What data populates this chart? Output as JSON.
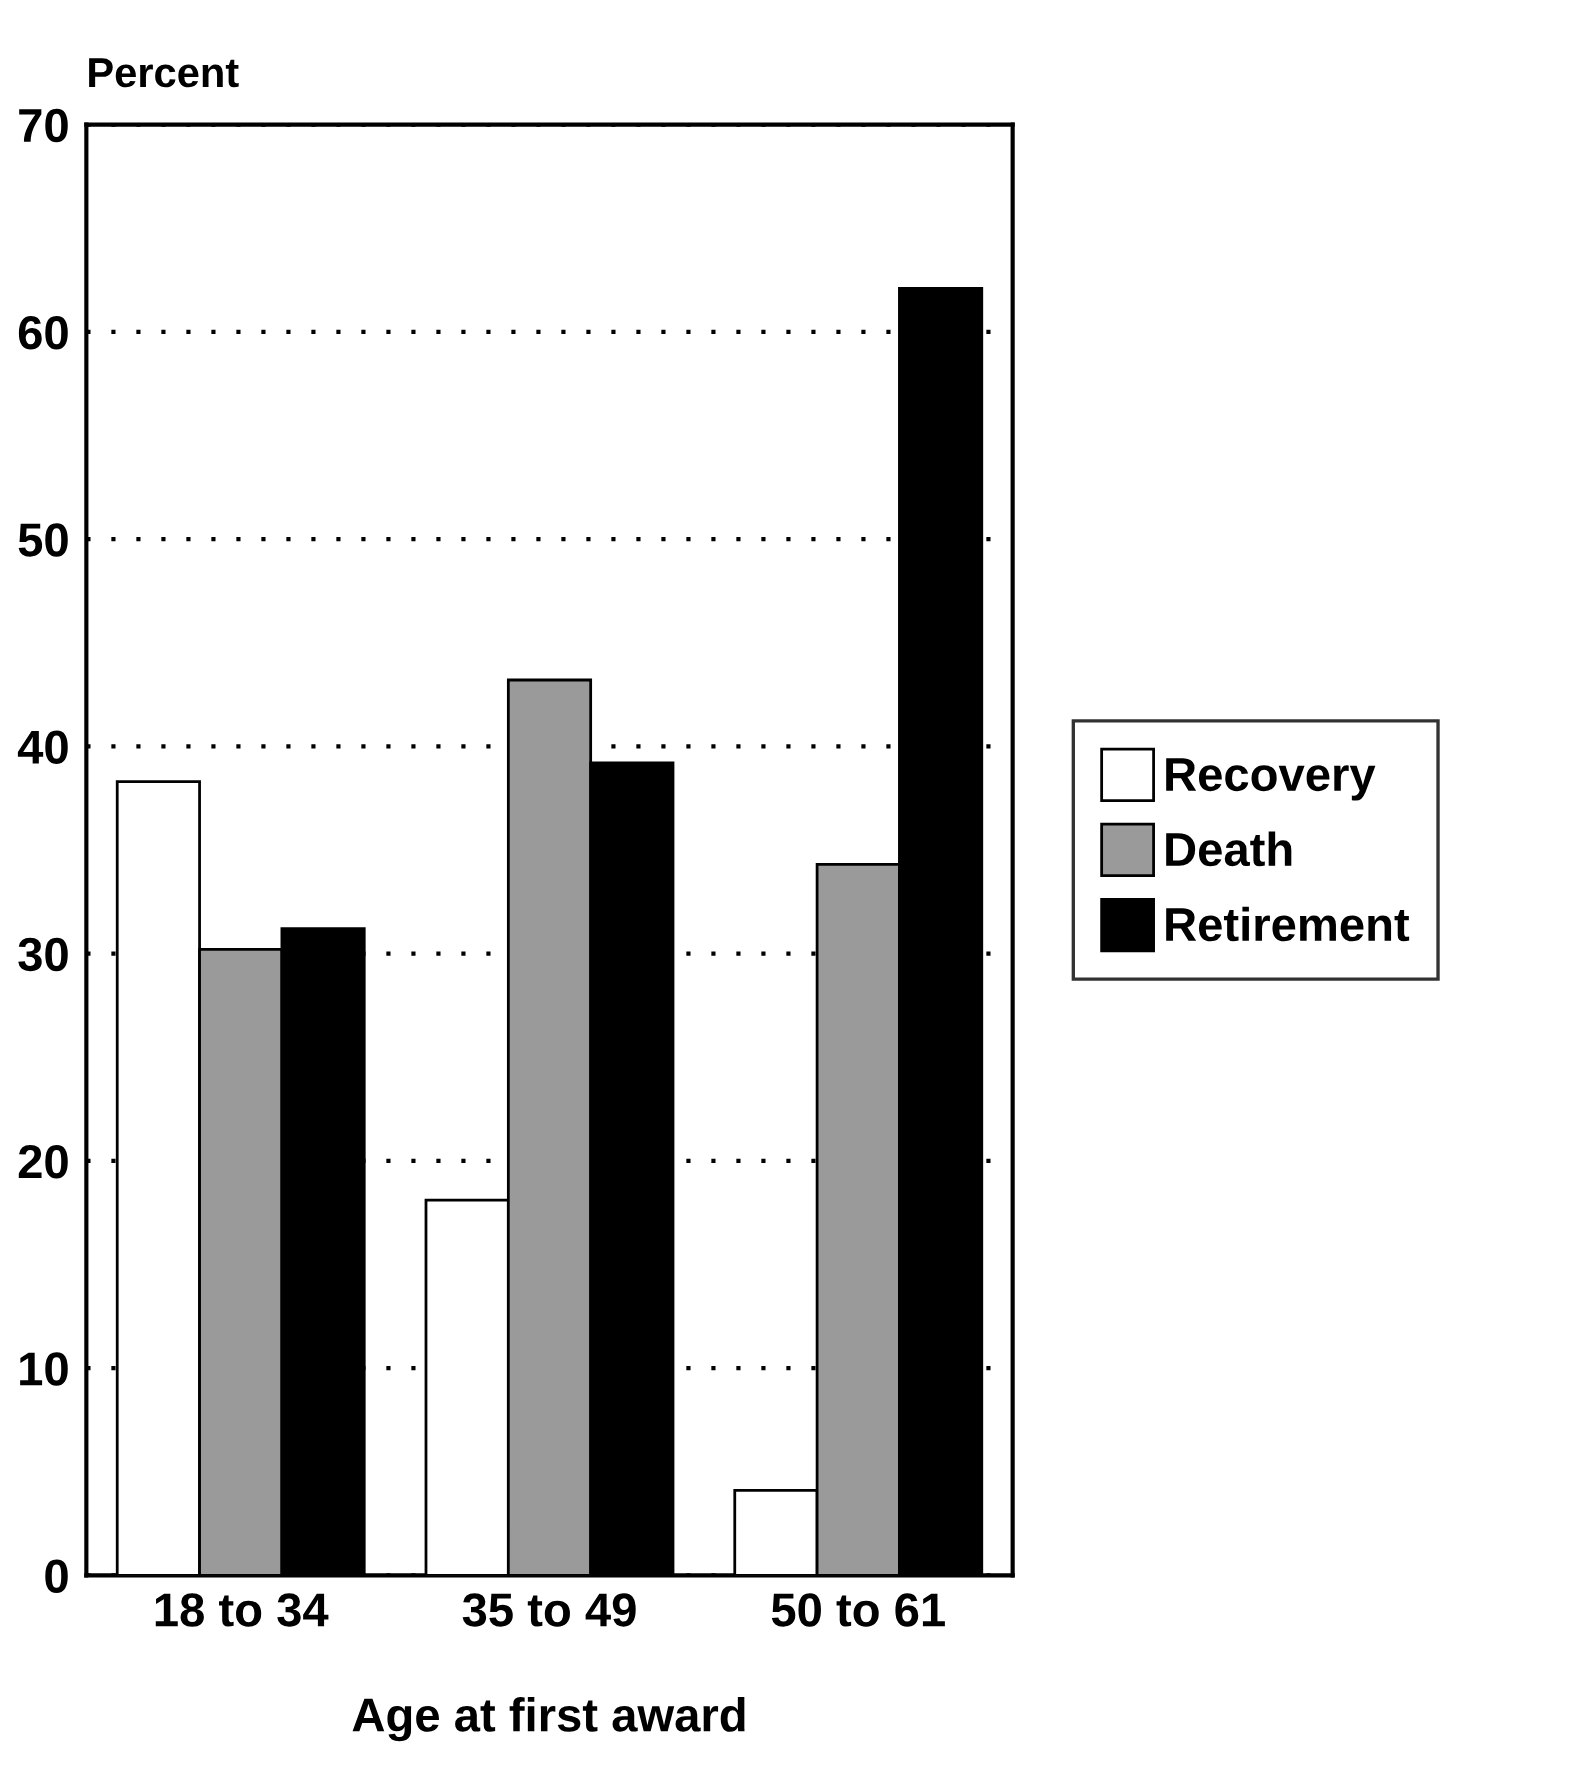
{
  "chart_data": {
    "type": "bar",
    "ylabel": "Percent",
    "xlabel": "Age at first award",
    "categories": [
      "18 to 34",
      "35 to 49",
      "50 to 61"
    ],
    "series": [
      {
        "name": "Recovery",
        "color": "#ffffff",
        "values": [
          38.3,
          18.1,
          4.1
        ]
      },
      {
        "name": "Death",
        "color": "#9a9a9a",
        "values": [
          30.2,
          43.2,
          34.3
        ]
      },
      {
        "name": "Retirement",
        "color": "#000000",
        "values": [
          31.2,
          39.2,
          62.1
        ]
      }
    ],
    "ylim": [
      0,
      70
    ],
    "yticks": [
      0,
      10,
      20,
      30,
      40,
      50,
      60,
      70
    ],
    "grid": "y",
    "legend": "right"
  }
}
